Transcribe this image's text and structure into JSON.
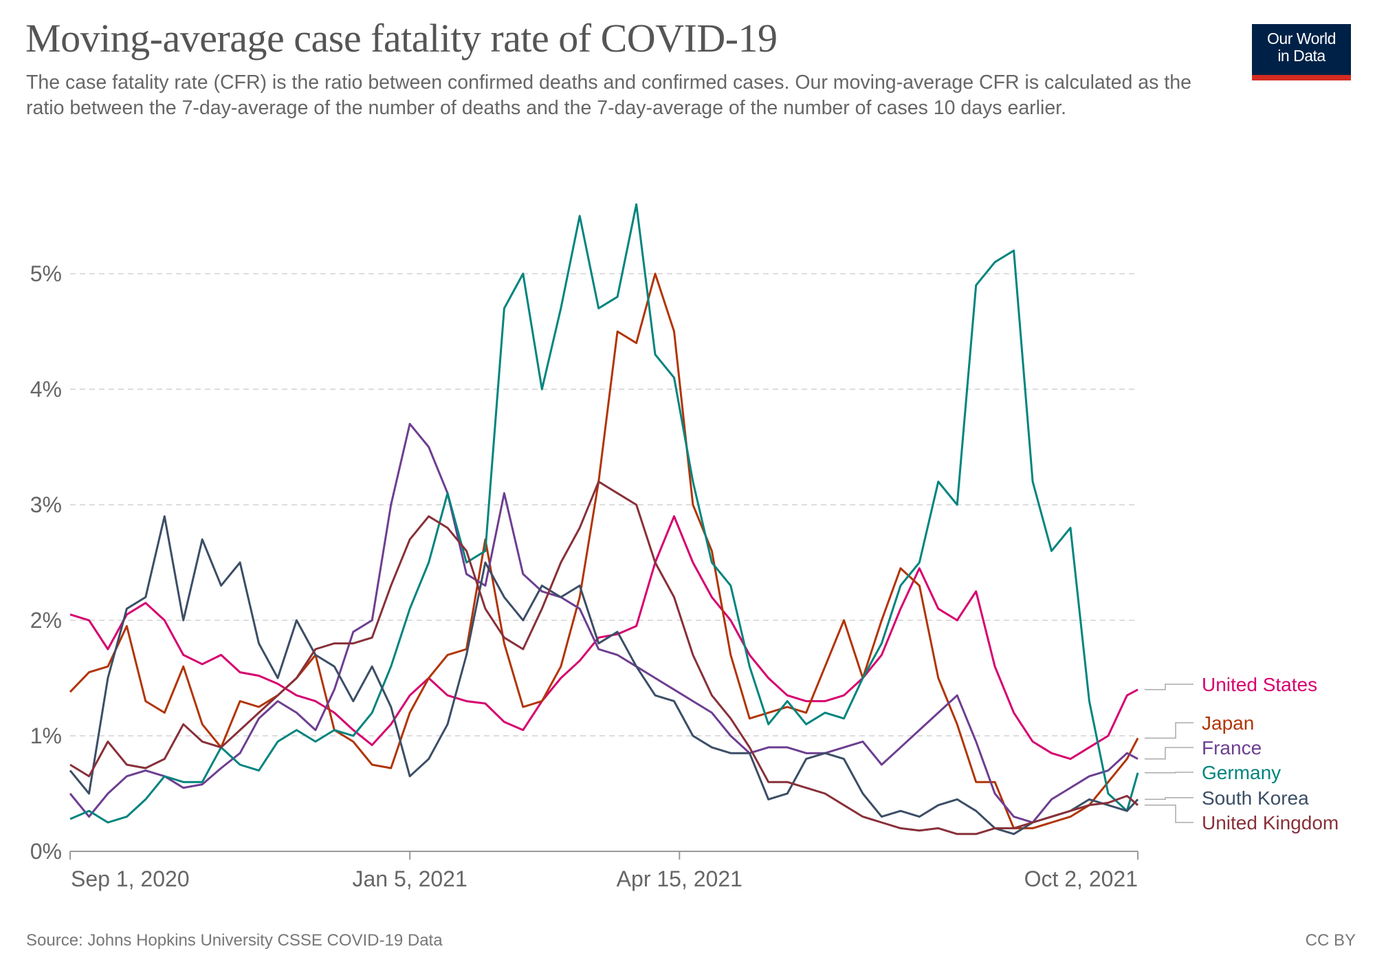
{
  "header": {
    "title": "Moving-average case fatality rate of COVID-19",
    "subtitle": "The case fatality rate (CFR) is the ratio between confirmed deaths and confirmed cases. Our moving-average CFR is calculated as the ratio between the 7-day-average of the number of deaths and the 7-day-average of the number of cases 10 days earlier.",
    "logo_line1": "Our World",
    "logo_line2": "in Data",
    "logo_colors": {
      "background": "#002147",
      "accent": "#d42b21"
    }
  },
  "footer": {
    "source": "Source: Johns Hopkins University CSSE COVID-19 Data",
    "license": "CC BY"
  },
  "chart_data": {
    "type": "line",
    "title": "Moving-average case fatality rate of COVID-19",
    "xlabel": "",
    "ylabel": "",
    "x_start": "2020-09-01",
    "x_end": "2021-10-02",
    "x_step_days": 7,
    "xlim_days": [
      0,
      396
    ],
    "ylim": [
      0,
      5.9
    ],
    "y_unit": "%",
    "y_ticks": [
      0,
      1,
      2,
      3,
      4,
      5
    ],
    "y_tick_labels": [
      "0%",
      "1%",
      "2%",
      "3%",
      "4%",
      "5%"
    ],
    "x_ticks": [
      {
        "day": 0,
        "label": "Sep 1, 2020"
      },
      {
        "day": 126,
        "label": "Jan 5, 2021"
      },
      {
        "day": 226,
        "label": "Apr 15, 2021"
      },
      {
        "day": 396,
        "label": "Oct 2, 2021"
      }
    ],
    "grid": "horizontal-dashed",
    "legend": "right, end-of-line labels",
    "series": [
      {
        "name": "United States",
        "color": "#d6006f",
        "values": [
          2.05,
          2.0,
          1.75,
          2.05,
          2.15,
          2.0,
          1.7,
          1.62,
          1.7,
          1.55,
          1.52,
          1.45,
          1.35,
          1.3,
          1.2,
          1.05,
          0.92,
          1.1,
          1.35,
          1.5,
          1.35,
          1.3,
          1.28,
          1.12,
          1.05,
          1.3,
          1.5,
          1.65,
          1.85,
          1.88,
          1.95,
          2.5,
          2.9,
          2.5,
          2.2,
          2.0,
          1.7,
          1.5,
          1.35,
          1.3,
          1.3,
          1.35,
          1.5,
          1.7,
          2.1,
          2.45,
          2.1,
          2.0,
          2.25,
          1.6,
          1.2,
          0.95,
          0.85,
          0.8,
          0.9,
          1.0,
          1.35,
          1.4
        ]
      },
      {
        "name": "Japan",
        "color": "#b13507",
        "values": [
          1.38,
          1.55,
          1.6,
          1.95,
          1.3,
          1.2,
          1.6,
          1.1,
          0.9,
          1.3,
          1.25,
          1.35,
          1.5,
          1.7,
          1.05,
          0.95,
          0.75,
          0.72,
          1.2,
          1.5,
          1.7,
          1.75,
          2.7,
          1.8,
          1.25,
          1.3,
          1.6,
          2.2,
          3.2,
          4.5,
          4.4,
          5.0,
          4.5,
          3.0,
          2.6,
          1.7,
          1.15,
          1.2,
          1.25,
          1.2,
          1.6,
          2.0,
          1.5,
          2.0,
          2.45,
          2.3,
          1.5,
          1.1,
          0.6,
          0.6,
          0.2,
          0.2,
          0.25,
          0.3,
          0.4,
          0.6,
          0.8,
          0.98
        ]
      },
      {
        "name": "France",
        "color": "#6d3e91",
        "values": [
          0.5,
          0.3,
          0.5,
          0.65,
          0.7,
          0.65,
          0.55,
          0.58,
          0.72,
          0.85,
          1.15,
          1.3,
          1.2,
          1.05,
          1.4,
          1.9,
          2.0,
          3.0,
          3.7,
          3.5,
          3.1,
          2.4,
          2.3,
          3.1,
          2.4,
          2.25,
          2.2,
          2.1,
          1.75,
          1.7,
          1.6,
          1.5,
          1.4,
          1.3,
          1.2,
          1.0,
          0.85,
          0.9,
          0.9,
          0.85,
          0.85,
          0.9,
          0.95,
          0.75,
          0.9,
          1.05,
          1.2,
          1.35,
          0.95,
          0.5,
          0.3,
          0.25,
          0.45,
          0.55,
          0.65,
          0.7,
          0.85,
          0.8
        ]
      },
      {
        "name": "Germany",
        "color": "#00847e",
        "values": [
          0.28,
          0.35,
          0.25,
          0.3,
          0.45,
          0.65,
          0.6,
          0.6,
          0.9,
          0.75,
          0.7,
          0.95,
          1.05,
          0.95,
          1.05,
          1.0,
          1.2,
          1.6,
          2.1,
          2.5,
          3.1,
          2.5,
          2.6,
          4.7,
          5.0,
          4.0,
          4.7,
          5.5,
          4.7,
          4.8,
          5.6,
          4.3,
          4.1,
          3.2,
          2.5,
          2.3,
          1.6,
          1.1,
          1.3,
          1.1,
          1.2,
          1.15,
          1.5,
          1.8,
          2.3,
          2.5,
          3.2,
          3.0,
          4.9,
          5.1,
          5.2,
          3.2,
          2.6,
          2.8,
          1.3,
          0.5,
          0.35,
          0.68
        ]
      },
      {
        "name": "South Korea",
        "color": "#3c4e66",
        "values": [
          0.7,
          0.5,
          1.5,
          2.1,
          2.2,
          2.9,
          2.0,
          2.7,
          2.3,
          2.5,
          1.8,
          1.5,
          2.0,
          1.7,
          1.6,
          1.3,
          1.6,
          1.25,
          0.65,
          0.8,
          1.1,
          1.7,
          2.5,
          2.2,
          2.0,
          2.3,
          2.2,
          2.3,
          1.8,
          1.9,
          1.6,
          1.35,
          1.3,
          1.0,
          0.9,
          0.85,
          0.85,
          0.45,
          0.5,
          0.8,
          0.85,
          0.8,
          0.5,
          0.3,
          0.35,
          0.3,
          0.4,
          0.45,
          0.35,
          0.2,
          0.15,
          0.25,
          0.3,
          0.35,
          0.45,
          0.4,
          0.35,
          0.45
        ]
      },
      {
        "name": "United Kingdom",
        "color": "#883039",
        "values": [
          0.75,
          0.65,
          0.95,
          0.75,
          0.72,
          0.8,
          1.1,
          0.95,
          0.9,
          1.05,
          1.2,
          1.35,
          1.5,
          1.75,
          1.8,
          1.8,
          1.85,
          2.3,
          2.7,
          2.9,
          2.8,
          2.6,
          2.1,
          1.85,
          1.75,
          2.1,
          2.5,
          2.8,
          3.2,
          3.1,
          3.0,
          2.5,
          2.2,
          1.7,
          1.35,
          1.15,
          0.9,
          0.6,
          0.6,
          0.55,
          0.5,
          0.4,
          0.3,
          0.25,
          0.2,
          0.18,
          0.2,
          0.15,
          0.15,
          0.2,
          0.2,
          0.25,
          0.3,
          0.35,
          0.4,
          0.42,
          0.48,
          0.4
        ]
      }
    ],
    "end_labels": [
      {
        "name": "United States",
        "color": "#d6006f"
      },
      {
        "name": "Japan",
        "color": "#b13507"
      },
      {
        "name": "France",
        "color": "#6d3e91"
      },
      {
        "name": "Germany",
        "color": "#00847e"
      },
      {
        "name": "South Korea",
        "color": "#3c4e66"
      },
      {
        "name": "United Kingdom",
        "color": "#883039"
      }
    ]
  }
}
